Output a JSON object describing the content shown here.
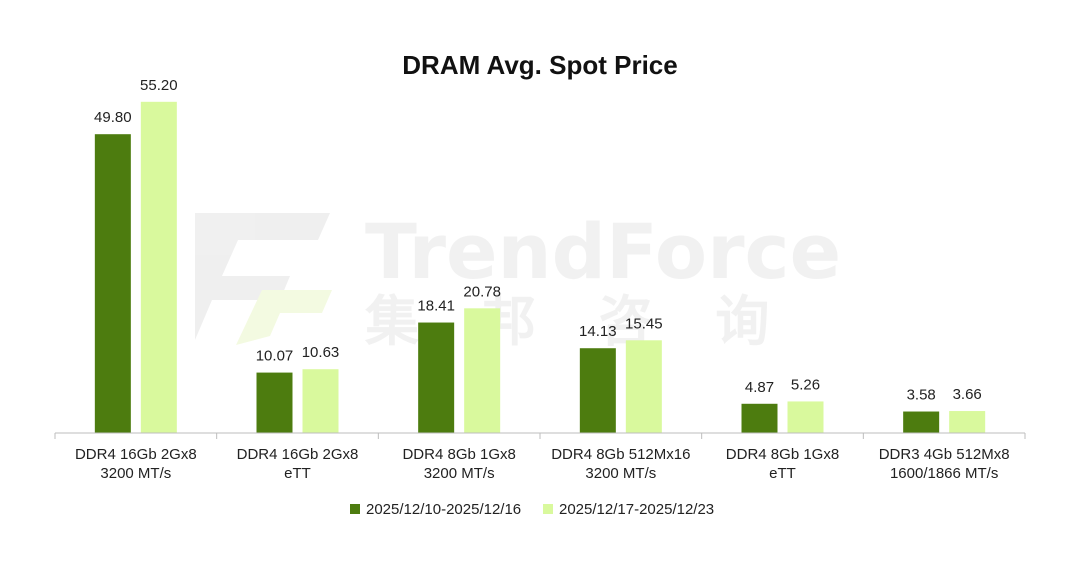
{
  "chart_data": {
    "type": "bar",
    "title": "DRAM Avg. Spot Price",
    "xlabel": "",
    "ylabel": "",
    "ylim": [
      0,
      60
    ],
    "grid": false,
    "legend_position": "bottom-center",
    "categories": [
      [
        "DDR4 16Gb 2Gx8",
        "3200 MT/s"
      ],
      [
        "DDR4 16Gb 2Gx8",
        "eTT"
      ],
      [
        "DDR4 8Gb 1Gx8",
        "3200 MT/s"
      ],
      [
        "DDR4 8Gb 512Mx16",
        "3200 MT/s"
      ],
      [
        "DDR4 8Gb 1Gx8",
        "eTT"
      ],
      [
        "DDR3 4Gb 512Mx8",
        "1600/1866 MT/s"
      ]
    ],
    "series": [
      {
        "name": "2025/12/10-2025/12/16",
        "color": "#4d7c0f",
        "values": [
          49.8,
          10.07,
          18.41,
          14.13,
          4.87,
          3.58
        ],
        "labels": [
          "49.80",
          "10.07",
          "18.41",
          "14.13",
          "4.87",
          "3.58"
        ]
      },
      {
        "name": "2025/12/17-2025/12/23",
        "color": "#d9f99d",
        "values": [
          55.2,
          10.63,
          20.78,
          15.45,
          5.26,
          3.66
        ],
        "labels": [
          "55.20",
          "10.63",
          "20.78",
          "15.45",
          "5.26",
          "3.66"
        ]
      }
    ]
  },
  "watermark": {
    "brand": "TrendForce",
    "brand_cn": "集 邦 咨 询",
    "color": "#e6e6e6"
  }
}
